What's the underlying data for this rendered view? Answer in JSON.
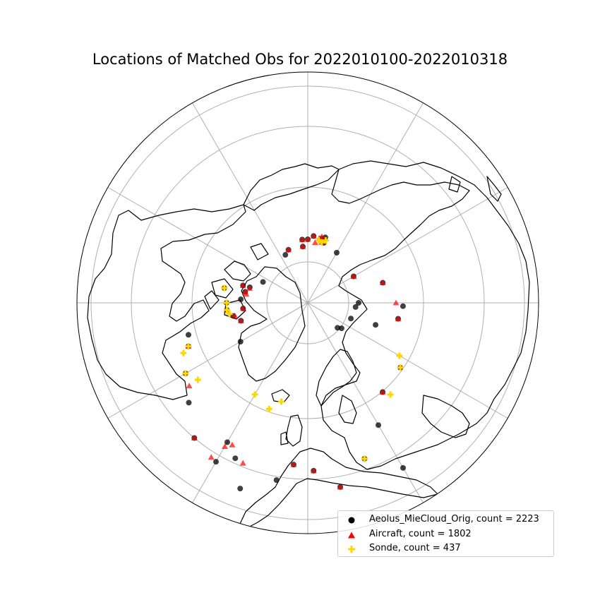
{
  "title": "Locations of Matched Obs for 2022010100-2022010318",
  "colors": {
    "aeolus": "#000000",
    "aircraft": "#ff0000",
    "sonde": "#ffd700",
    "grid": "#b0b0b0",
    "coast": "#000000"
  },
  "projection": "north-polar-stereographic",
  "grid": true,
  "legend": {
    "placement": "lower-right",
    "entries": [
      {
        "key": "aeolus",
        "marker": "circle",
        "label": "Aeolus_MieCloud_Orig, count = 2223"
      },
      {
        "key": "aircraft",
        "marker": "triangle",
        "label": "Aircraft, count = 1802"
      },
      {
        "key": "sonde",
        "marker": "plus",
        "label": "Sonde, count = 437"
      }
    ]
  },
  "observations": {
    "aeolus": [
      [
        250,
        -140
      ],
      [
        260,
        -150
      ],
      [
        228,
        -150
      ],
      [
        243,
        -155
      ],
      [
        255,
        -170
      ],
      [
        200,
        -120
      ],
      [
        180,
        -110
      ],
      [
        175,
        -105
      ],
      [
        115,
        -95
      ],
      [
        107,
        -100
      ],
      [
        98,
        -105
      ],
      [
        92,
        -95
      ],
      [
        95,
        -87
      ],
      [
        90,
        -80
      ],
      [
        85,
        -75
      ],
      [
        70,
        -65
      ],
      [
        80,
        -20
      ],
      [
        75,
        -25
      ],
      [
        80,
        -5
      ],
      [
        90,
        0
      ],
      [
        90,
        -5
      ],
      [
        95,
        5
      ],
      [
        93,
        12
      ],
      [
        96,
        15
      ],
      [
        88,
        15
      ],
      [
        82,
        30
      ],
      [
        75,
        60
      ],
      [
        110,
        75
      ],
      [
        135,
        92
      ],
      [
        130,
        100
      ],
      [
        160,
        125
      ],
      [
        165,
        140
      ],
      [
        265,
        170
      ],
      [
        270,
        150
      ],
      [
        238,
        178
      ],
      [
        235,
        160
      ],
      [
        200,
        150
      ],
      [
        230,
        -175
      ],
      [
        280,
        -160
      ],
      [
        95,
        -75
      ],
      [
        55,
        130
      ],
      [
        60,
        127
      ],
      [
        65,
        110
      ],
      [
        68,
        95
      ],
      [
        72,
        90
      ],
      [
        101,
        108
      ],
      [
        115,
        -90
      ],
      [
        120,
        -80
      ],
      [
        110,
        -120
      ],
      [
        220,
        -130
      ]
    ],
    "aircraft": [
      [
        250,
        -140
      ],
      [
        258,
        -148
      ],
      [
        235,
        -150
      ],
      [
        245,
        -158
      ],
      [
        228,
        -152
      ],
      [
        205,
        -125
      ],
      [
        180,
        -110
      ],
      [
        115,
        -95
      ],
      [
        105,
        -100
      ],
      [
        98,
        -105
      ],
      [
        92,
        -95
      ],
      [
        90,
        -80
      ],
      [
        88,
        -82
      ],
      [
        85,
        -76
      ],
      [
        80,
        -20
      ],
      [
        80,
        -5
      ],
      [
        90,
        0
      ],
      [
        90,
        -5
      ],
      [
        95,
        5
      ],
      [
        93,
        10
      ],
      [
        96,
        12
      ],
      [
        88,
        13
      ],
      [
        86,
        7
      ],
      [
        75,
        60
      ],
      [
        110,
        75
      ],
      [
        125,
        90
      ],
      [
        130,
        100
      ],
      [
        165,
        140
      ],
      [
        265,
        170
      ],
      [
        238,
        178
      ],
      [
        230,
        -175
      ],
      [
        95,
        -75
      ]
    ],
    "sonde": [
      [
        115,
        -95
      ],
      [
        112,
        -98
      ],
      [
        180,
        -110
      ],
      [
        190,
        -112
      ],
      [
        88,
        13
      ],
      [
        90,
        10
      ],
      [
        92,
        16
      ],
      [
        150,
        120
      ],
      [
        160,
        125
      ],
      [
        175,
        138
      ],
      [
        150,
        -150
      ],
      [
        115,
        -90
      ],
      [
        120,
        -80
      ],
      [
        200,
        -120
      ],
      [
        190,
        -125
      ],
      [
        160,
        -160
      ],
      [
        145,
        -165
      ],
      [
        235,
        160
      ]
    ]
  }
}
